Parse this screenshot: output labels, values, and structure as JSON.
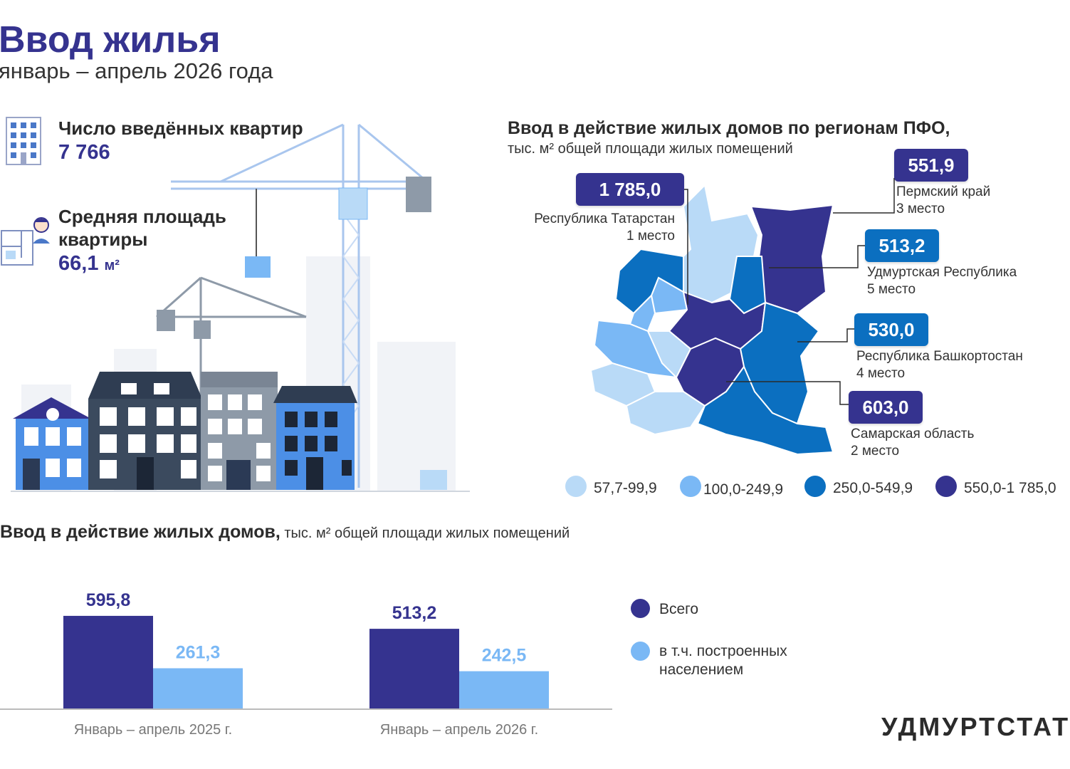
{
  "header": {
    "title": "Ввод жилья",
    "subtitle": "январь – апрель 2026 года"
  },
  "stats": {
    "apartments_label": "Число введённых квартир",
    "apartments_value": "7 766",
    "avg_area_label_1": "Средняя площадь",
    "avg_area_label_2": "квартиры",
    "avg_area_value": "66,1",
    "avg_area_unit": "м²"
  },
  "map": {
    "title": "Ввод в действие жилых домов по регионам ПФО,",
    "subtitle": "тыс. м² общей площади жилых помещений",
    "callouts": [
      {
        "value": "1 785,0",
        "name": "Республика Татарстан",
        "rank": "1 место",
        "color": "#35338f"
      },
      {
        "value": "551,9",
        "name": "Пермский край",
        "rank": "3 место",
        "color": "#35338f"
      },
      {
        "value": "513,2",
        "name": "Удмуртская Республика",
        "rank": "5 место",
        "color": "#0b6fc0"
      },
      {
        "value": "530,0",
        "name": "Республика Башкортостан",
        "rank": "4 место",
        "color": "#0b6fc0"
      },
      {
        "value": "603,0",
        "name": "Самарская область",
        "rank": "2 место",
        "color": "#35338f"
      }
    ],
    "legend": [
      {
        "label": "57,7-99,9",
        "color": "#b9daf7"
      },
      {
        "label": "100,0-249,9",
        "color": "#7ab8f5"
      },
      {
        "label": "250,0-549,9",
        "color": "#0b6fc0"
      },
      {
        "label": "550,0-1 785,0",
        "color": "#35338f"
      }
    ]
  },
  "bar_section": {
    "title_bold": "Ввод в действие жилых домов,",
    "title_rest": " тыс. м² общей площади жилых помещений",
    "logo": "УДМУРТСТАТ"
  },
  "chart_data": {
    "type": "bar",
    "categories": [
      "Январь – апрель 2025 г.",
      "Январь – апрель 2026 г."
    ],
    "series": [
      {
        "name": "Всего",
        "values": [
          595.8,
          513.2
        ],
        "labels": [
          "595,8",
          "513,2"
        ],
        "color": "#35338f"
      },
      {
        "name": "в т.ч. построенных населением",
        "values": [
          261.3,
          242.5
        ],
        "labels": [
          "261,3",
          "242,5"
        ],
        "color": "#7ab8f5"
      }
    ],
    "legend_position": "right",
    "grid": false
  }
}
